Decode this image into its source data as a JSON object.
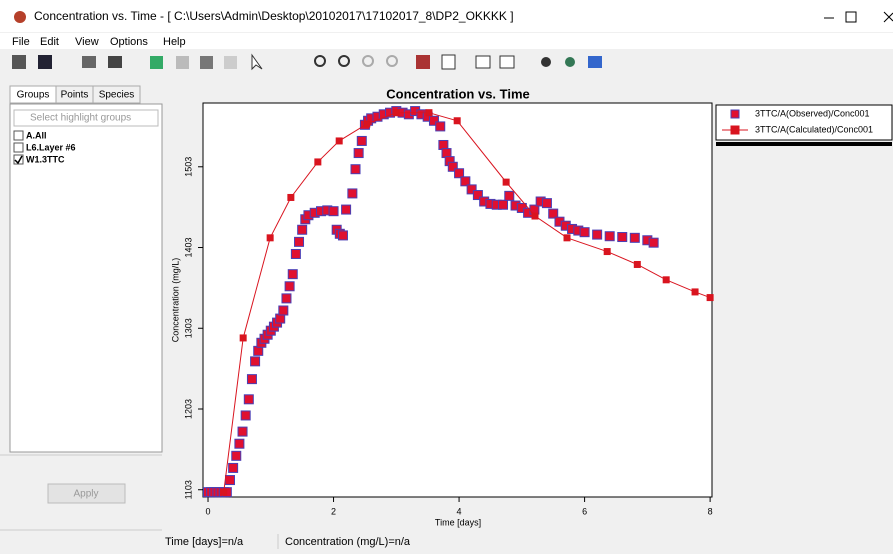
{
  "window": {
    "title": "Concentration vs. Time - [ C:\\Users\\Admin\\Desktop\\20102017\\17102017_8\\DP2_OKKKK ]"
  },
  "menu": [
    "File",
    "Edit",
    "View",
    "Options",
    "Help"
  ],
  "tabs": [
    "Groups",
    "Points",
    "Species"
  ],
  "search_placeholder": "Select highlight groups",
  "groups": [
    {
      "label": "A.All",
      "checked": false
    },
    {
      "label": "L6.Layer #6",
      "checked": false
    },
    {
      "label": "W1.3TTC",
      "checked": true
    }
  ],
  "apply_button": "Apply",
  "status": [
    "Time  [days]=n/a",
    "Concentration (mg/L)=n/a"
  ],
  "chart_data": {
    "type": "line",
    "title": "Concentration vs. Time",
    "x_label": "Time  [days]",
    "y_label": "Concentration (mg/L)",
    "xlim": [
      -0.08,
      8.03
    ],
    "ylim": [
      1094,
      1582
    ],
    "xticks": [
      0,
      2,
      4,
      6,
      8
    ],
    "yticks": [
      1103,
      1203,
      1303,
      1403,
      1503
    ],
    "series": [
      {
        "name": "3TTC/A(Observed)/Conc001",
        "color": "#e01030",
        "edgecolor": "#4a3fb5",
        "marker": "square",
        "line": false,
        "x": [
          0,
          0.05,
          0.1,
          0.15,
          0.2,
          0.25,
          0.3,
          0.35,
          0.4,
          0.45,
          0.5,
          0.55,
          0.6,
          0.65,
          0.7,
          0.75,
          0.8,
          0.85,
          0.9,
          0.95,
          1.0,
          1.05,
          1.1,
          1.15,
          1.2,
          1.25,
          1.3,
          1.35,
          1.4,
          1.45,
          1.5,
          1.55,
          1.6,
          1.7,
          1.8,
          1.9,
          2.0,
          2.05,
          2.1,
          2.15,
          2.2,
          2.3,
          2.35,
          2.4,
          2.45,
          2.5,
          2.55,
          2.6,
          2.7,
          2.8,
          2.9,
          3.0,
          3.1,
          3.2,
          3.3,
          3.4,
          3.5,
          3.6,
          3.7,
          3.75,
          3.8,
          3.85,
          3.9,
          4.0,
          4.1,
          4.2,
          4.3,
          4.4,
          4.5,
          4.6,
          4.7,
          4.8,
          4.9,
          5.0,
          5.1,
          5.2,
          5.3,
          5.4,
          5.5,
          5.6,
          5.7,
          5.8,
          5.9,
          6.0,
          6.2,
          6.4,
          6.6,
          6.8,
          7.0,
          7.1
        ],
        "values": [
          1100,
          1100,
          1100,
          1100,
          1100,
          1100,
          1100,
          1115,
          1130,
          1145,
          1160,
          1175,
          1195,
          1215,
          1240,
          1262,
          1275,
          1285,
          1290,
          1295,
          1300,
          1305,
          1310,
          1315,
          1325,
          1340,
          1355,
          1370,
          1395,
          1410,
          1425,
          1438,
          1443,
          1446,
          1448,
          1449,
          1448,
          1425,
          1420,
          1418,
          1450,
          1470,
          1500,
          1520,
          1535,
          1555,
          1560,
          1563,
          1565,
          1568,
          1570,
          1572,
          1570,
          1568,
          1572,
          1568,
          1565,
          1560,
          1553,
          1530,
          1520,
          1510,
          1503,
          1495,
          1485,
          1475,
          1468,
          1460,
          1457,
          1456,
          1456,
          1467,
          1455,
          1452,
          1446,
          1450,
          1460,
          1458,
          1445,
          1435,
          1430,
          1426,
          1424,
          1422,
          1419,
          1417,
          1416,
          1415,
          1412,
          1409
        ]
      },
      {
        "name": "3TTC/A(Calculated)/Conc001",
        "color": "#d9141f",
        "edgecolor": "#d9141f",
        "marker": "square",
        "line": true,
        "x": [
          0.25,
          0.56,
          0.99,
          1.32,
          1.75,
          2.09,
          2.53,
          3.0,
          3.52,
          3.97,
          4.75,
          5.21,
          5.72,
          6.36,
          6.84,
          7.3,
          7.76,
          8.0
        ],
        "values": [
          1100,
          1291,
          1415,
          1465,
          1509,
          1535,
          1556,
          1570,
          1570,
          1560,
          1484,
          1442,
          1415,
          1398,
          1382,
          1363,
          1348,
          1341
        ]
      }
    ]
  }
}
